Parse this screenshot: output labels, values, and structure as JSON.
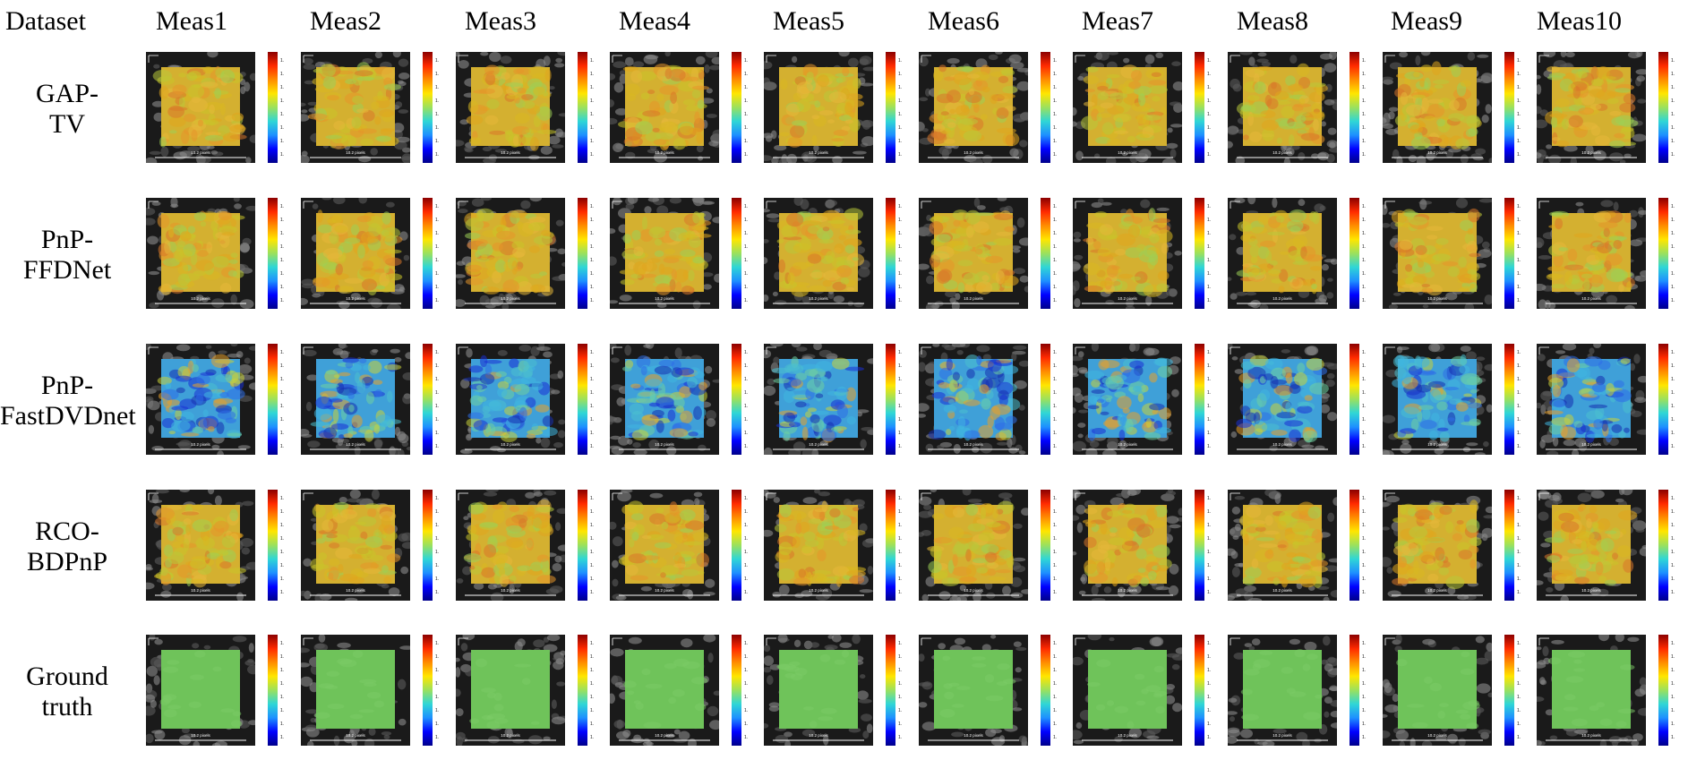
{
  "header": {
    "dataset_label": "Dataset",
    "columns": [
      "Meas1",
      "Meas2",
      "Meas3",
      "Meas4",
      "Meas5",
      "Meas6",
      "Meas7",
      "Meas8",
      "Meas9",
      "Meas10"
    ]
  },
  "rows": [
    {
      "label_lines": [
        "GAP-",
        "TV"
      ],
      "style": "warm"
    },
    {
      "label_lines": [
        "PnP-",
        "FFDNet"
      ],
      "style": "warm"
    },
    {
      "label_lines": [
        "PnP-",
        "FastDVDnet"
      ],
      "style": "mixed"
    },
    {
      "label_lines": [
        "RCO-",
        "BDPnP"
      ],
      "style": "warm"
    },
    {
      "label_lines": [
        "Ground",
        "truth"
      ],
      "style": "flat"
    }
  ],
  "panel_scale_text": "10.2 pixels",
  "colorbar_tick_labels": [
    "1.",
    "1.",
    "1.",
    "1.",
    "1.",
    "1.",
    "1.",
    "1.",
    "1.",
    "1.",
    "1."
  ],
  "colors": {
    "ground_truth_fill": "#6fc35a",
    "background_pattern": "#1a1a1a"
  }
}
